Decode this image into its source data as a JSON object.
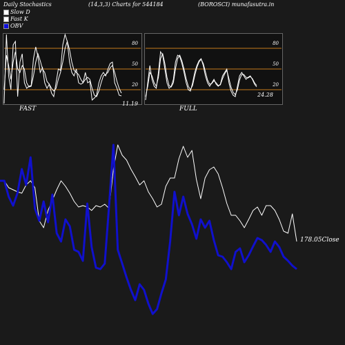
{
  "header": {
    "left": "Daily Stochastics",
    "center": "(14,3,3) Charts for 544184",
    "right": "(BOROSCI) munafasutra.in"
  },
  "legend": [
    {
      "label": "Slow  D",
      "color": "#ffffff"
    },
    {
      "label": "Fast K",
      "color": "#ffffff"
    },
    {
      "label": "OBV",
      "color": "#1010dd"
    }
  ],
  "colors": {
    "background": "#1a1a1a",
    "panel": "#111111",
    "guide": "#c87a1a",
    "obv": "#1010cc",
    "price": "#ffffff"
  },
  "chart_data": [
    {
      "type": "line",
      "panel": "FAST",
      "levels": [
        80,
        50,
        20
      ],
      "level_labels": [
        "80",
        "50",
        "20"
      ],
      "ylim": [
        0,
        100
      ],
      "last_value_label": "11.19",
      "series": [
        {
          "values": [
            0,
            100,
            40,
            20,
            85,
            90,
            10,
            60,
            72,
            30,
            22,
            25,
            26,
            65,
            82,
            68,
            45,
            52,
            30,
            22,
            28,
            15,
            10,
            30,
            50,
            48,
            85,
            100,
            90,
            60,
            45,
            40,
            50,
            30,
            28,
            30,
            45,
            30,
            32,
            5,
            8,
            12,
            30,
            40,
            45,
            40,
            50,
            58,
            60,
            30,
            22,
            12,
            11
          ]
        },
        {
          "values": [
            20,
            70,
            55,
            35,
            60,
            75,
            50,
            45,
            55,
            50,
            30,
            24,
            25,
            40,
            60,
            72,
            62,
            50,
            45,
            32,
            28,
            22,
            18,
            22,
            35,
            45,
            60,
            80,
            90,
            78,
            60,
            48,
            45,
            42,
            35,
            30,
            35,
            38,
            35,
            22,
            12,
            10,
            18,
            30,
            40,
            42,
            45,
            52,
            55,
            45,
            32,
            22,
            15
          ]
        }
      ]
    },
    {
      "type": "line",
      "panel": "FULL",
      "levels": [
        80,
        50,
        20
      ],
      "level_labels": [
        "80",
        "50",
        "20"
      ],
      "ylim": [
        0,
        100
      ],
      "last_value_label": "24.28",
      "series": [
        {
          "values": [
            5,
            30,
            55,
            35,
            25,
            22,
            45,
            75,
            70,
            50,
            30,
            22,
            25,
            35,
            60,
            70,
            68,
            58,
            45,
            30,
            20,
            18,
            30,
            45,
            55,
            62,
            65,
            55,
            40,
            30,
            25,
            30,
            35,
            28,
            25,
            28,
            40,
            45,
            50,
            30,
            18,
            12,
            10,
            25,
            40,
            45,
            40,
            35,
            38,
            40,
            35,
            28,
            24
          ]
        },
        {
          "values": [
            10,
            25,
            45,
            40,
            30,
            25,
            38,
            65,
            72,
            58,
            38,
            26,
            24,
            30,
            50,
            65,
            70,
            62,
            50,
            36,
            25,
            20,
            26,
            40,
            52,
            60,
            64,
            58,
            46,
            34,
            28,
            29,
            33,
            30,
            26,
            27,
            36,
            43,
            48,
            36,
            24,
            16,
            13,
            20,
            34,
            42,
            42,
            38,
            37,
            39,
            36,
            30,
            26
          ]
        }
      ]
    },
    {
      "type": "line",
      "panel": "price_obv",
      "last_value_label": "178.05",
      "last_value_suffix": "Close",
      "series": [
        {
          "name": "Close",
          "values": [
            262,
            262,
            272,
            275,
            278,
            280,
            268,
            262,
            272,
            320,
            330,
            305,
            290,
            275,
            262,
            270,
            280,
            292,
            300,
            298,
            300,
            305,
            298,
            300,
            296,
            302,
            245,
            210,
            225,
            232,
            245,
            256,
            268,
            262,
            278,
            288,
            300,
            296,
            270,
            258,
            258,
            230,
            212,
            228,
            218,
            260,
            288,
            258,
            246,
            242,
            252,
            272,
            295,
            312,
            312,
            320,
            330,
            318,
            305,
            300,
            312,
            298,
            298,
            305,
            318,
            335,
            338,
            310,
            350
          ]
        },
        {
          "name": "OBV",
          "color": "#1010cc",
          "values": [
            262,
            262,
            285,
            298,
            280,
            245,
            268,
            228,
            302,
            320,
            292,
            322,
            282,
            338,
            350,
            318,
            328,
            362,
            365,
            378,
            295,
            358,
            388,
            390,
            382,
            298,
            210,
            362,
            382,
            402,
            420,
            435,
            412,
            420,
            440,
            455,
            448,
            425,
            405,
            350,
            278,
            312,
            285,
            310,
            325,
            346,
            318,
            330,
            320,
            348,
            370,
            372,
            380,
            390,
            365,
            360,
            380,
            370,
            357,
            345,
            348,
            355,
            365,
            350,
            358,
            372,
            378,
            385,
            390
          ]
        }
      ]
    }
  ],
  "panels": {
    "fast_label": "FAST",
    "full_label": "FULL"
  }
}
